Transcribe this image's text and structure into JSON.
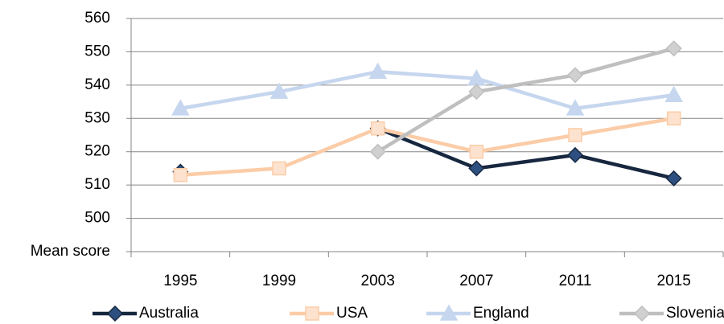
{
  "chart_data": {
    "type": "line",
    "categories": [
      "1995",
      "1999",
      "2003",
      "2007",
      "2011",
      "2015"
    ],
    "series": [
      {
        "name": "Australia",
        "color": "#17273f",
        "marker_color": "#2e5080",
        "marker": "diamond",
        "values": [
          514,
          null,
          527,
          515,
          519,
          512
        ]
      },
      {
        "name": "USA",
        "color": "#fbcca7",
        "marker_color": "#fde3cf",
        "marker": "square",
        "values": [
          513,
          515,
          527,
          520,
          525,
          530
        ]
      },
      {
        "name": "England",
        "color": "#c5d6ee",
        "marker_color": "#c5d6ee",
        "marker": "triangle",
        "values": [
          533,
          538,
          544,
          542,
          533,
          537
        ]
      },
      {
        "name": "Slovenia",
        "color": "#bfbfbf",
        "marker_color": "#d0d0d0",
        "marker": "diamond",
        "values": [
          null,
          null,
          520,
          538,
          543,
          551
        ]
      }
    ],
    "ylim": [
      490,
      560
    ],
    "yticks": [
      {
        "value": 490,
        "label": "Mean score"
      },
      500,
      510,
      520,
      530,
      540,
      550,
      560
    ],
    "grid": true,
    "legend": "bottom"
  }
}
